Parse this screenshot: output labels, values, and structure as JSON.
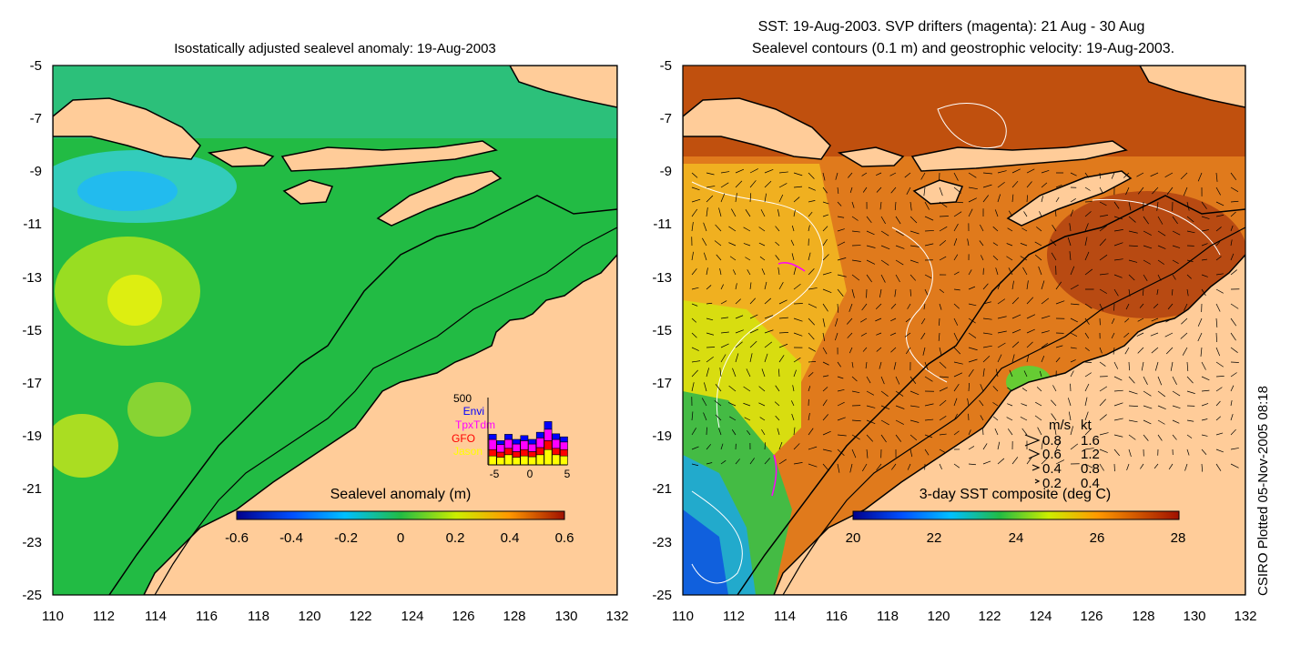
{
  "colors": {
    "land": "#ffcc99",
    "ocean_base": "#22bb44",
    "sst_warm": "#d2691e",
    "drifter": "#ff00ff",
    "contour": "#ffffff",
    "coast": "#000000"
  },
  "left_panel": {
    "title": "Isostatically adjusted sealevel anomaly: 19-Aug-2003",
    "colorbar_label": "Sealevel anomaly (m)",
    "colorbar_ticks": [
      "-0.6",
      "-0.4",
      "-0.2",
      "0",
      "0.2",
      "0.4",
      "0.6"
    ],
    "inset": {
      "ymax_label": "500",
      "satellites": [
        {
          "name": "Envi",
          "color": "#0000ff"
        },
        {
          "name": "TpxTdm",
          "color": "#ff00ff"
        },
        {
          "name": "GFO",
          "color": "#ff0000"
        },
        {
          "name": "Jason",
          "color": "#ffff00"
        }
      ],
      "x_ticks": [
        "-5",
        "0",
        "5"
      ],
      "stacks": [
        [
          20,
          40,
          25,
          35
        ],
        [
          15,
          30,
          20,
          30
        ],
        [
          20,
          35,
          25,
          40
        ],
        [
          18,
          30,
          22,
          30
        ],
        [
          20,
          35,
          25,
          35
        ],
        [
          18,
          30,
          20,
          32
        ],
        [
          22,
          38,
          28,
          40
        ],
        [
          30,
          45,
          35,
          60
        ],
        [
          22,
          35,
          25,
          40
        ],
        [
          20,
          30,
          25,
          35
        ]
      ]
    }
  },
  "right_panel": {
    "title_line1": "SST: 19-Aug-2003. SVP drifters (magenta): 21 Aug - 30 Aug",
    "title_line2": "Sealevel contours (0.1 m) and geostrophic velocity: 19-Aug-2003.",
    "colorbar_label": "3-day SST composite (deg C)",
    "colorbar_ticks": [
      "20",
      "22",
      "24",
      "26",
      "28"
    ],
    "velocity_legend": {
      "header_ms": "m/s",
      "header_kt": "kt",
      "rows": [
        {
          "ms": "0.8",
          "kt": "1.6"
        },
        {
          "ms": "0.6",
          "kt": "1.2"
        },
        {
          "ms": "0.4",
          "kt": "0.8"
        },
        {
          "ms": "0.2",
          "kt": "0.4"
        }
      ]
    }
  },
  "y_ticks": [
    "-5",
    "-7",
    "-9",
    "-11",
    "-13",
    "-15",
    "-17",
    "-19",
    "-21",
    "-23",
    "-25"
  ],
  "x_ticks": [
    "110",
    "112",
    "114",
    "116",
    "118",
    "120",
    "122",
    "124",
    "126",
    "128",
    "130",
    "132"
  ],
  "side_label": "CSIRO Plotted 05-Nov-2005 08:18",
  "chart_data": [
    {
      "type": "heatmap",
      "title": "Isostatically adjusted sealevel anomaly: 19-Aug-2003",
      "xlim": [
        110,
        132
      ],
      "ylim": [
        -25,
        -5
      ],
      "colorbar_range": [
        -0.6,
        0.6
      ],
      "colorbar_label": "Sealevel anomaly (m)"
    },
    {
      "type": "heatmap",
      "title": "SST: 19-Aug-2003. SVP drifters (magenta): 21 Aug - 30 Aug",
      "xlim": [
        110,
        132
      ],
      "ylim": [
        -25,
        -5
      ],
      "colorbar_range": [
        20,
        28
      ],
      "colorbar_label": "3-day SST composite (deg C)"
    }
  ]
}
